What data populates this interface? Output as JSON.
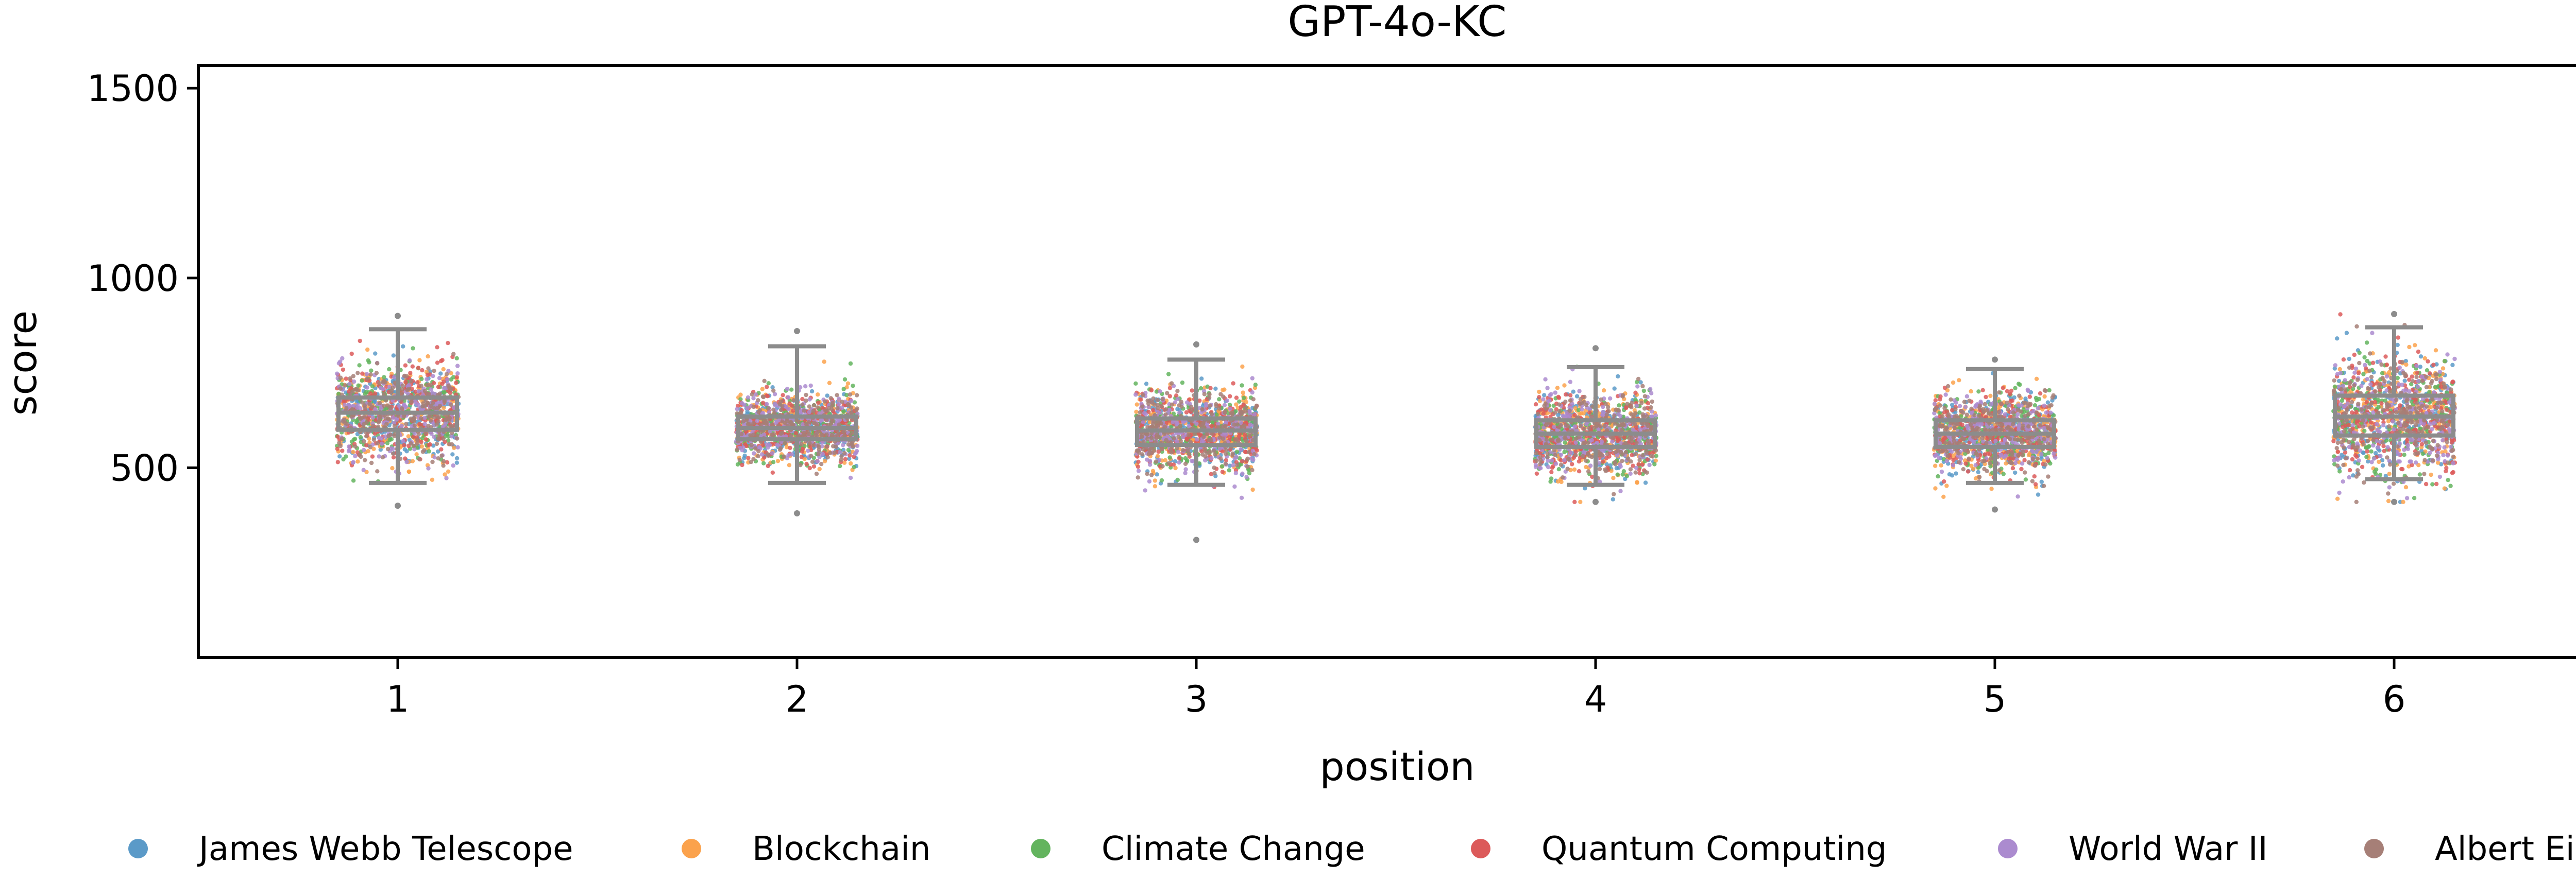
{
  "chart_data": {
    "type": "box-strip",
    "title": "GPT-4o-KC",
    "xlabel": "position",
    "ylabel": "score",
    "ylim": [
      0,
      1560
    ],
    "yticks": [
      500,
      1000,
      1500
    ],
    "categories": [
      "1",
      "2",
      "3",
      "4",
      "5",
      "6"
    ],
    "boxes": [
      {
        "position": "1",
        "q1": 600,
        "median": 645,
        "q3": 685,
        "whisker_low": 460,
        "whisker_high": 865,
        "min": 400,
        "max": 900
      },
      {
        "position": "2",
        "q1": 575,
        "median": 605,
        "q3": 635,
        "whisker_low": 460,
        "whisker_high": 820,
        "min": 380,
        "max": 860
      },
      {
        "position": "3",
        "q1": 560,
        "median": 598,
        "q3": 630,
        "whisker_low": 455,
        "whisker_high": 785,
        "min": 310,
        "max": 825
      },
      {
        "position": "4",
        "q1": 555,
        "median": 590,
        "q3": 625,
        "whisker_low": 455,
        "whisker_high": 765,
        "min": 410,
        "max": 815
      },
      {
        "position": "5",
        "q1": 555,
        "median": 590,
        "q3": 625,
        "whisker_low": 460,
        "whisker_high": 760,
        "min": 390,
        "max": 785
      },
      {
        "position": "6",
        "q1": 585,
        "median": 635,
        "q3": 690,
        "whisker_low": 470,
        "whisker_high": 870,
        "min": 410,
        "max": 905
      }
    ],
    "series": [
      {
        "name": "James Webb Telescope",
        "color": "#5b9ac8"
      },
      {
        "name": "Blockchain",
        "color": "#fba24c"
      },
      {
        "name": "Climate Change",
        "color": "#63b45e"
      },
      {
        "name": "Quantum Computing",
        "color": "#dc5a5a"
      },
      {
        "name": "World War II",
        "color": "#ab8bcf"
      },
      {
        "name": "Albert Einstein",
        "color": "#a67f77"
      }
    ],
    "legend_position": "bottom",
    "box_color": "#8c8c8c",
    "grid": false
  }
}
